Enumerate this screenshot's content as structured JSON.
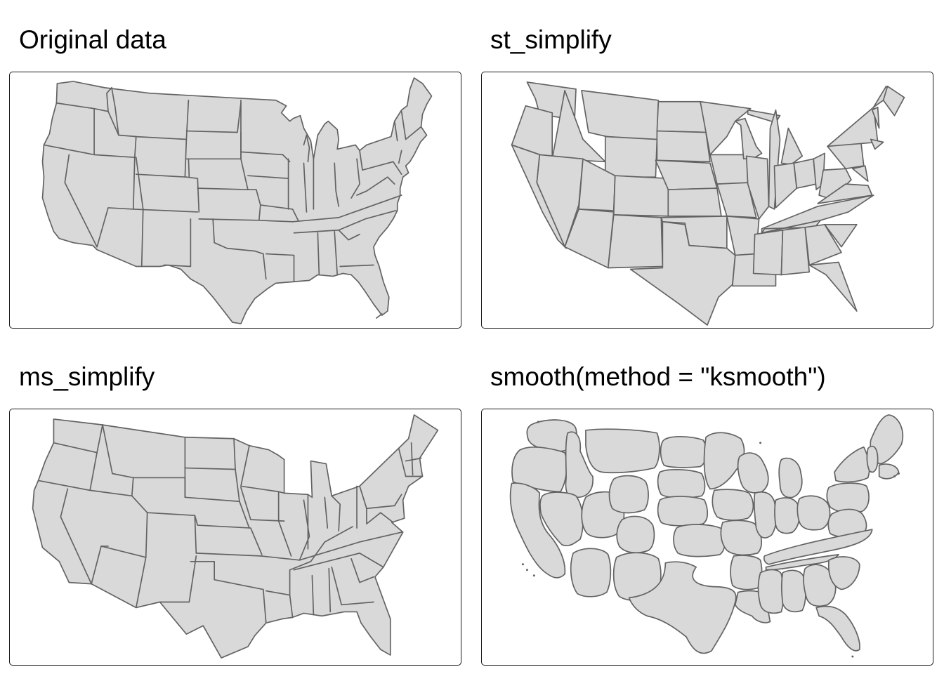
{
  "panels": [
    {
      "title": "Original data",
      "style": "original"
    },
    {
      "title": "st_simplify",
      "style": "st_simplify"
    },
    {
      "title": "ms_simplify",
      "style": "ms_simplify"
    },
    {
      "title": "smooth(method = \"ksmooth\")",
      "style": "ksmooth"
    }
  ],
  "colors": {
    "fill": "#d9d9d9",
    "stroke": "#636363",
    "frame": "#1a1a1a",
    "background": "#ffffff"
  }
}
